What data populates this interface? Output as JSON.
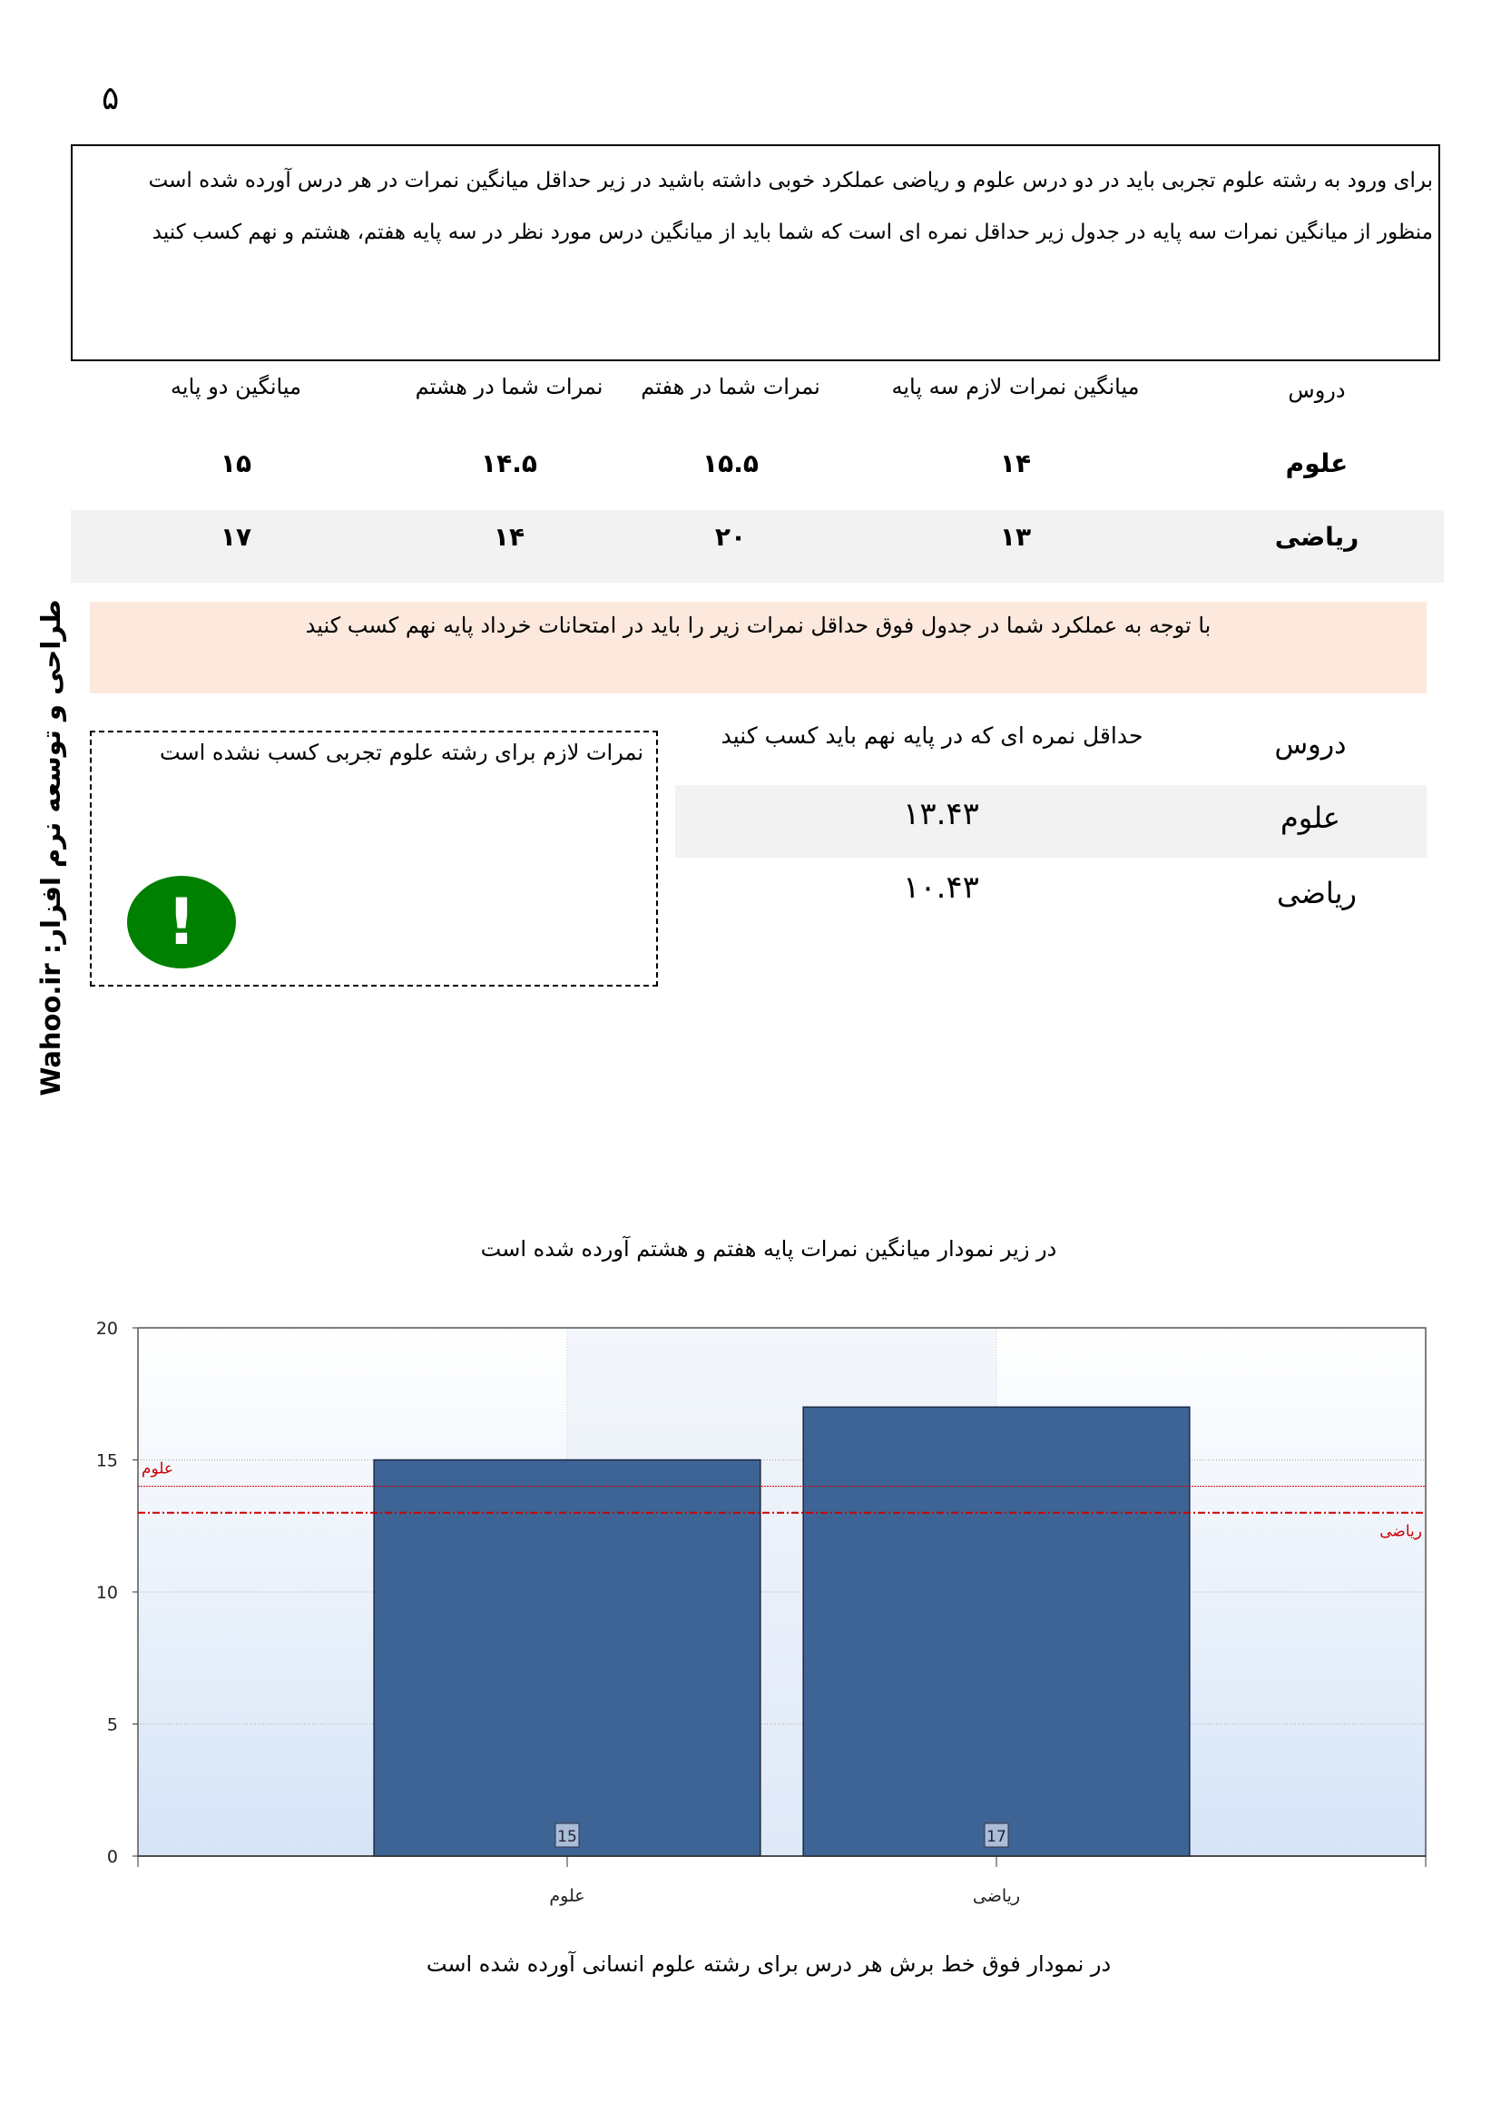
{
  "page_number": "۵",
  "intro": {
    "paragraph1": "برای ورود به رشته علوم تجربی باید در دو درس علوم و ریاضی عملکرد خوبی داشته باشید در زیر حداقل میانگین نمرات در هر درس آورده شده است",
    "paragraph2": "منظور از میانگین نمرات سه پایه در جدول زیر حداقل نمره ای است که شما باید از میانگین درس مورد نظر در سه پایه هفتم، هشتم و نهم کسب کنید"
  },
  "grades_table": {
    "headers": [
      "دروس",
      "میانگین نمرات لازم سه پایه",
      "نمرات شما در هفتم",
      "نمرات شما در هشتم",
      "میانگین دو پایه"
    ],
    "rows": [
      {
        "subject": "علوم",
        "required_avg": "۱۴",
        "seventh": "۱۵.۵",
        "eighth": "۱۴.۵",
        "two_year_avg": "۱۵"
      },
      {
        "subject": "ریاضی",
        "required_avg": "۱۳",
        "seventh": "۲۰",
        "eighth": "۱۴",
        "two_year_avg": "۱۷"
      }
    ]
  },
  "notice": "با توجه به عملکرد شما در جدول فوق حداقل نمرات زیر را باید در امتحانات خرداد پایه نهم کسب کنید",
  "min_table": {
    "headers": [
      "دروس",
      "حداقل نمره ای که در پایه نهم باید کسب کنید"
    ],
    "rows": [
      {
        "subject": "علوم",
        "min_grade": "۱۳.۴۳"
      },
      {
        "subject": "ریاضی",
        "min_grade": "۱۰.۴۳"
      }
    ]
  },
  "warning": {
    "text": "نمرات لازم برای رشته علوم تجربی کسب نشده است",
    "icon": "exclamation-circle-icon",
    "icon_color": "#008000"
  },
  "side_credit": "طراحی و توسعه نرم افزار: Wahoo.ir",
  "chart_caption": "در زیر نمودار میانگین نمرات پایه هفتم و هشتم آورده شده است",
  "chart_footer": "در نمودار فوق خط برش هر درس برای رشته علوم انسانی آورده شده است",
  "chart_data": {
    "type": "bar",
    "categories": [
      "علوم",
      "ریاضی"
    ],
    "values": [
      15,
      17
    ],
    "data_labels": [
      "15",
      "17"
    ],
    "ylim": [
      0,
      20
    ],
    "yticks": [
      "0",
      "5",
      "10",
      "15",
      "20"
    ],
    "grid": true,
    "bar_color": "#3d6494",
    "reference_lines": [
      {
        "label": "علوم",
        "value": 14,
        "color": "#cc0000",
        "style": "dotted"
      },
      {
        "label": "ریاضی",
        "value": 13,
        "color": "#cc0000",
        "style": "dash-dot"
      }
    ]
  }
}
